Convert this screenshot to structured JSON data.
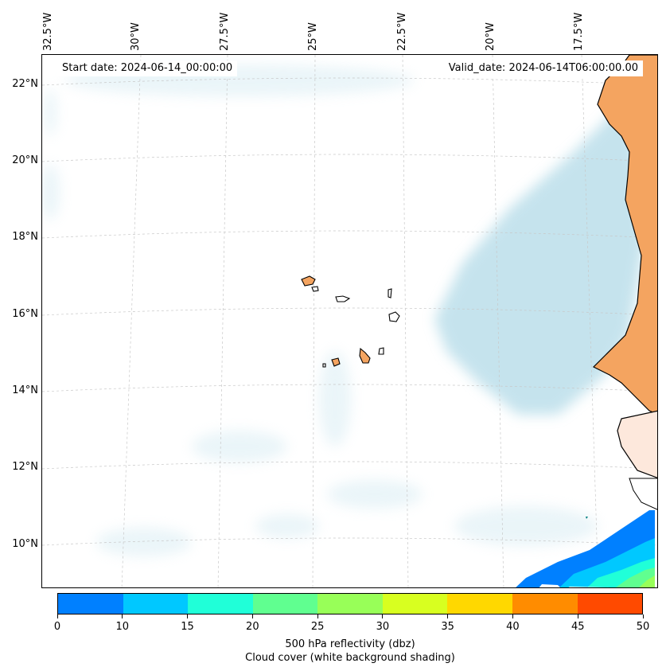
{
  "map": {
    "start_date": "Start date: 2024-06-14_00:00:00",
    "valid_date": "Valid_date: 2024-06-14T06:00:00.00",
    "lon_labels": [
      "32.5°W",
      "30°W",
      "27.5°W",
      "25°W",
      "22.5°W",
      "20°W",
      "17.5°W"
    ],
    "lat_labels": [
      "22°N",
      "20°N",
      "18°N",
      "16°N",
      "14°N",
      "12°N",
      "10°N"
    ],
    "colors": {
      "land": "#f4a460",
      "cloud": "#add8e6",
      "coastline": "#000000",
      "gridline": "#c8c8c8"
    }
  },
  "colorbar": {
    "ticks": [
      "0",
      "10",
      "15",
      "20",
      "25",
      "30",
      "35",
      "40",
      "45",
      "50"
    ],
    "colors": [
      "#0080ff",
      "#00c8ff",
      "#20ffd8",
      "#60ff90",
      "#98ff58",
      "#d8ff20",
      "#ffd800",
      "#ff8c00",
      "#ff4a00"
    ],
    "title_line1": "500 hPa reflectivity (dbz)",
    "title_line2": "Cloud cover (white background shading)"
  }
}
